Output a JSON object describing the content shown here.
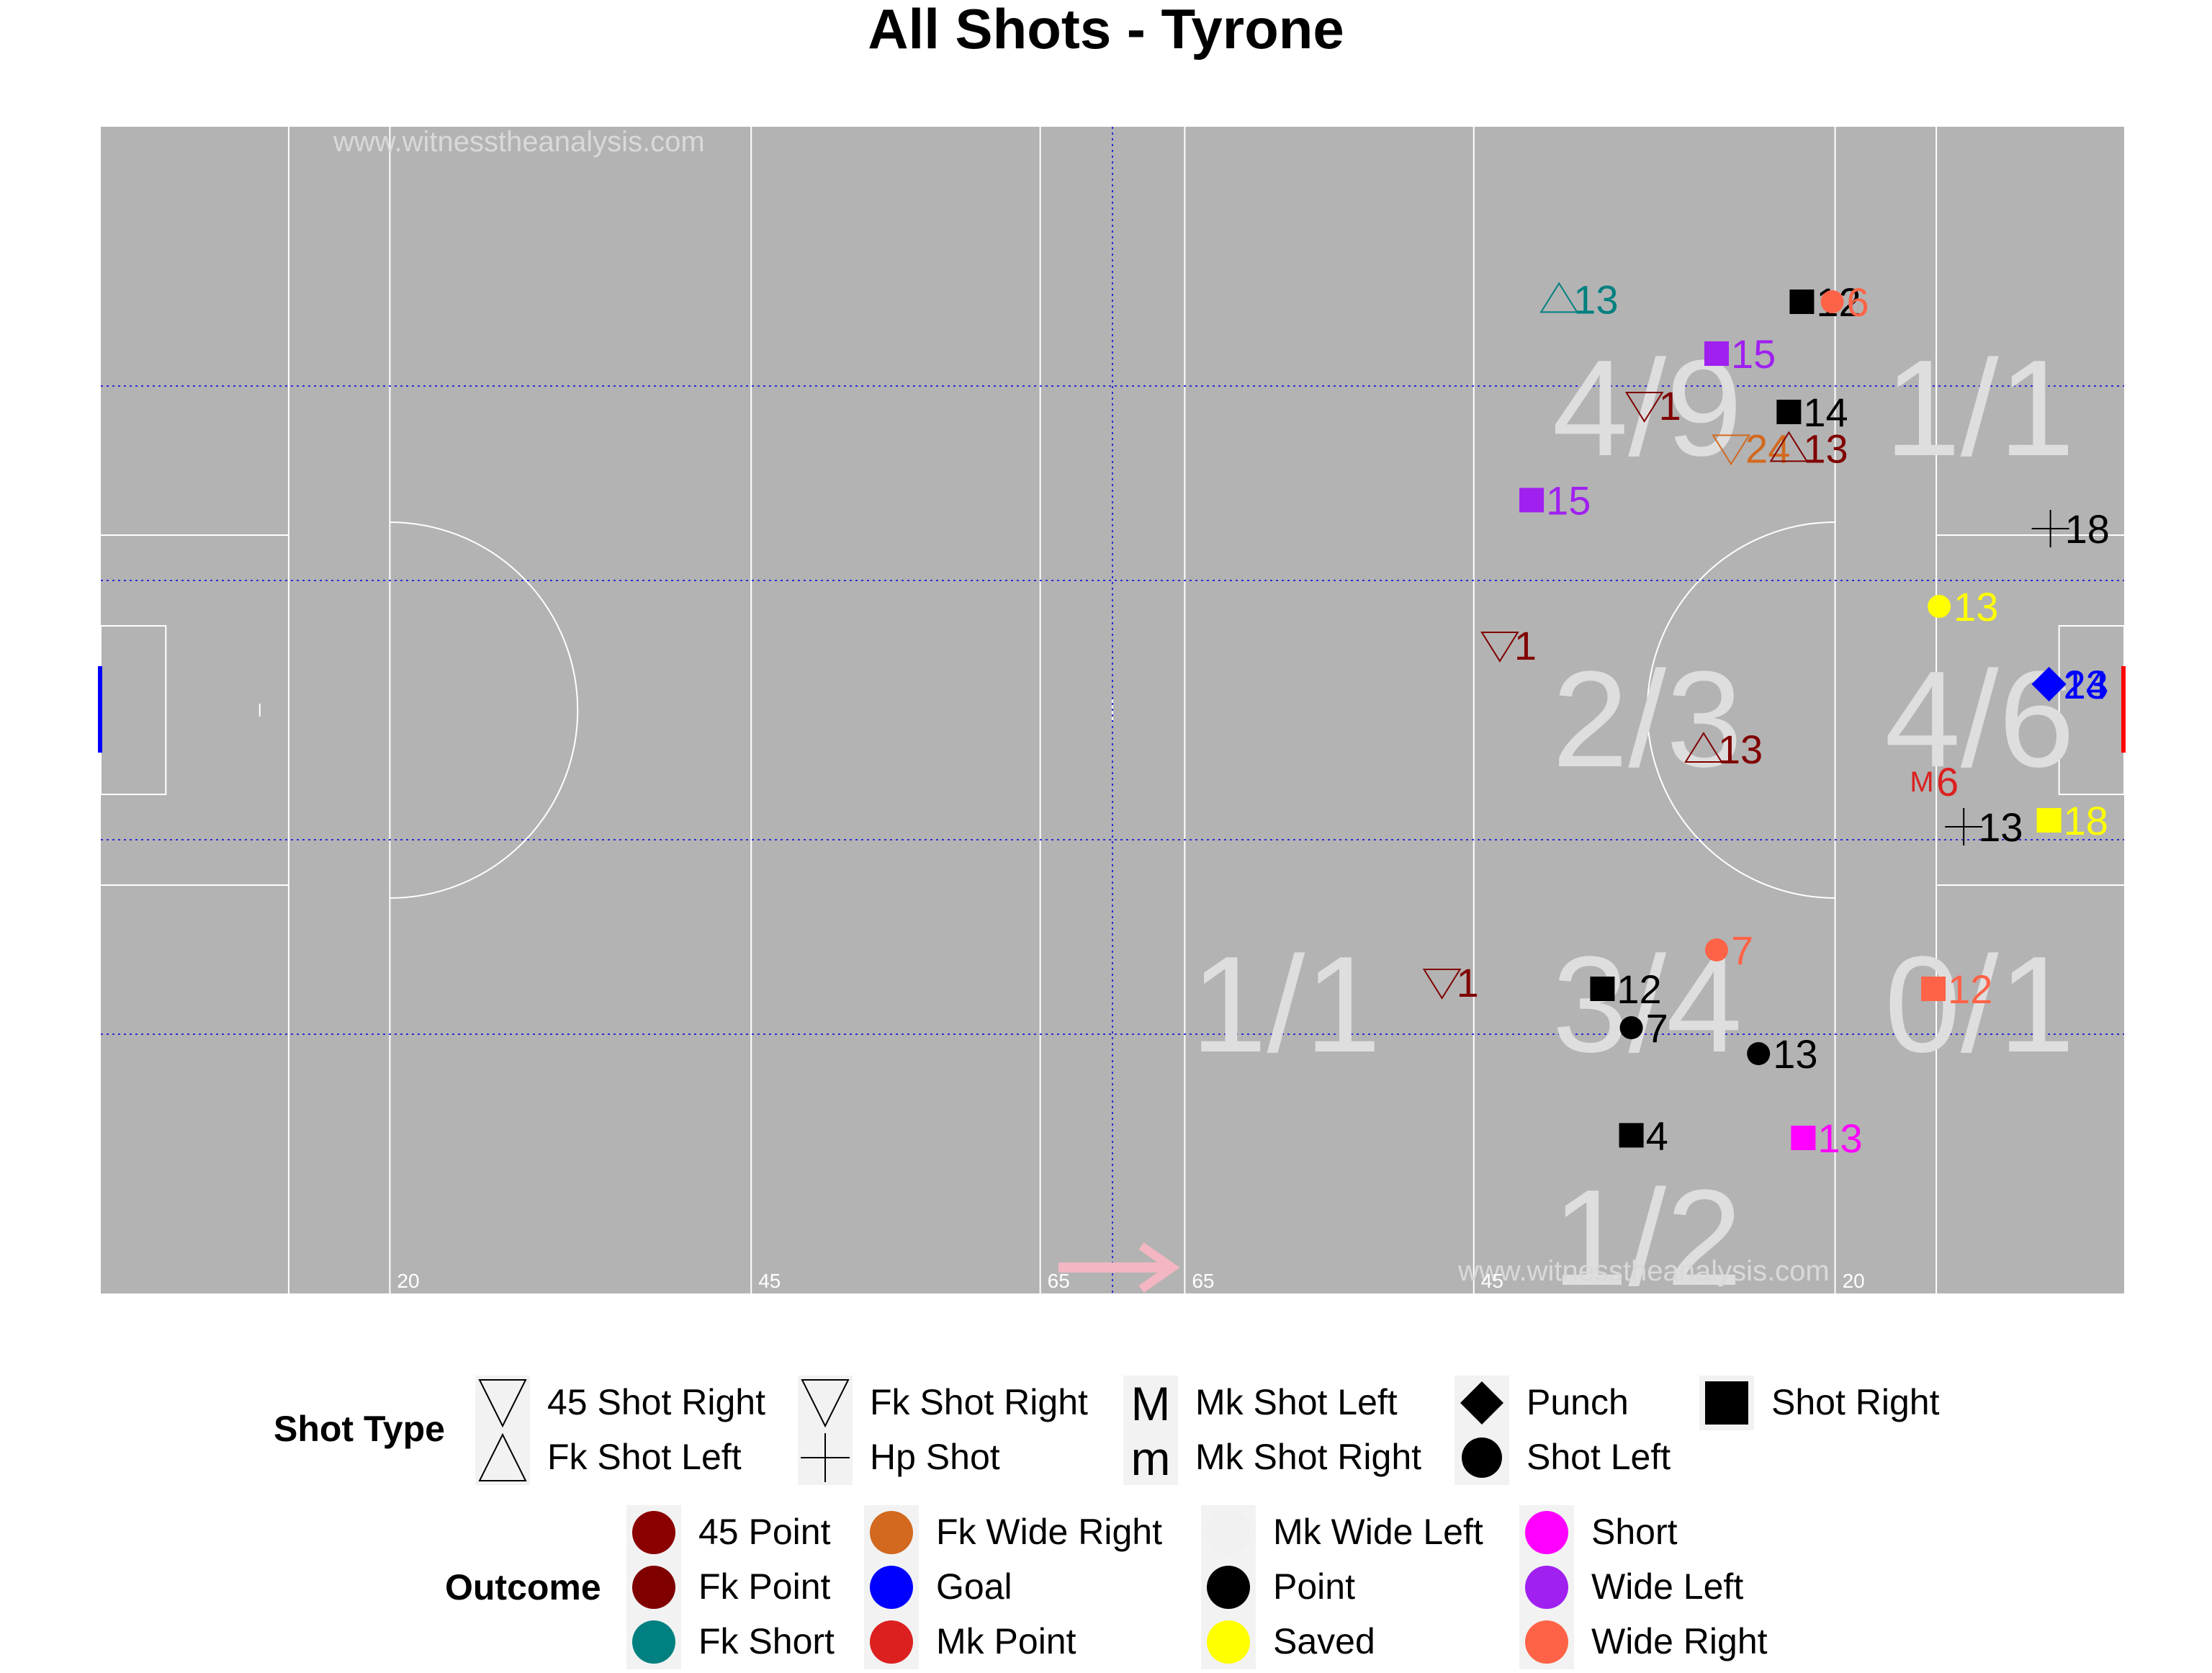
{
  "title": "All Shots - Tyrone",
  "colors": {
    "pitch": "#b3b3b3",
    "line": "#ffffff",
    "dotted": "#2b2bd6",
    "zone_text": "#dedede",
    "arrow": "#f4b6c2",
    "left_goal": "#0000ff",
    "right_goal": "#ff0000"
  },
  "pitch": {
    "watermark_top": "www.witnesstheanalysis.com",
    "watermark_bottom": "www.witnesstheanalysis.com",
    "markers": [
      {
        "label": "20",
        "x": 20
      },
      {
        "label": "45",
        "x": 45
      },
      {
        "label": "65",
        "x": 65
      },
      {
        "label": "65",
        "x": 75
      },
      {
        "label": "45",
        "x": 95
      },
      {
        "label": "20",
        "x": 120
      }
    ]
  },
  "chart_data": {
    "type": "scatter",
    "title": "All Shots - Tyrone",
    "xlim": [
      0,
      140
    ],
    "ylim": [
      0,
      90
    ],
    "zones": [
      {
        "label": "4/9",
        "x": 107,
        "y": 68
      },
      {
        "label": "1/1",
        "x": 130,
        "y": 68
      },
      {
        "label": "2/3",
        "x": 107,
        "y": 44
      },
      {
        "label": "4/6",
        "x": 130,
        "y": 44
      },
      {
        "label": "1/1",
        "x": 82,
        "y": 22
      },
      {
        "label": "3/4",
        "x": 107,
        "y": 22
      },
      {
        "label": "0/1",
        "x": 130,
        "y": 22
      },
      {
        "label": "1/2",
        "x": 107,
        "y": 4
      }
    ],
    "points": [
      {
        "x": 117.7,
        "y": 76.5,
        "label": "12",
        "shot_type": "Shot Right",
        "outcome": "Point"
      },
      {
        "x": 119.8,
        "y": 76.5,
        "label": "6",
        "shot_type": "Shot Left",
        "outcome": "Wide Right"
      },
      {
        "x": 100.9,
        "y": 76.7,
        "label": "13",
        "shot_type": "Fk Shot Left",
        "outcome": "Fk Short"
      },
      {
        "x": 111.8,
        "y": 72.5,
        "label": "15",
        "shot_type": "Shot Right",
        "outcome": "Wide Left"
      },
      {
        "x": 106.8,
        "y": 68.5,
        "label": "1",
        "shot_type": "Fk Shot Right",
        "outcome": "Fk Point"
      },
      {
        "x": 116.8,
        "y": 68.0,
        "label": "14",
        "shot_type": "Shot Right",
        "outcome": "Point"
      },
      {
        "x": 112.8,
        "y": 65.2,
        "label": "24",
        "shot_type": "Fk Shot Right",
        "outcome": "Fk Wide Right"
      },
      {
        "x": 116.8,
        "y": 65.2,
        "label": "13",
        "shot_type": "Fk Shot Left",
        "outcome": "Fk Point"
      },
      {
        "x": 99.0,
        "y": 61.2,
        "label": "15",
        "shot_type": "Shot Right",
        "outcome": "Wide Left"
      },
      {
        "x": 134.9,
        "y": 59.0,
        "label": "18",
        "shot_type": "Hp Shot",
        "outcome": "Point"
      },
      {
        "x": 127.2,
        "y": 53.0,
        "label": "13",
        "shot_type": "Shot Left",
        "outcome": "Saved"
      },
      {
        "x": 96.8,
        "y": 50.0,
        "label": "1",
        "shot_type": "Fk Shot Right",
        "outcome": "Fk Point"
      },
      {
        "x": 134.8,
        "y": 47.0,
        "label": "13",
        "shot_type": "Punch",
        "outcome": "Goal"
      },
      {
        "x": 134.8,
        "y": 47.0,
        "label": "24",
        "shot_type": "Punch",
        "outcome": "Goal"
      },
      {
        "x": 110.9,
        "y": 42.0,
        "label": "13",
        "shot_type": "Fk Shot Left",
        "outcome": "Fk Point"
      },
      {
        "x": 126.0,
        "y": 39.5,
        "label": "6",
        "shot_type": "Mk Shot Left",
        "outcome": "Mk Point"
      },
      {
        "x": 128.9,
        "y": 36.0,
        "label": "13",
        "shot_type": "Hp Shot",
        "outcome": "Point"
      },
      {
        "x": 134.8,
        "y": 36.5,
        "label": "18",
        "shot_type": "Shot Right",
        "outcome": "Saved"
      },
      {
        "x": 111.8,
        "y": 26.5,
        "label": "7",
        "shot_type": "Shot Left",
        "outcome": "Wide Right"
      },
      {
        "x": 92.8,
        "y": 24.0,
        "label": "1",
        "shot_type": "Fk Shot Right",
        "outcome": "Fk Point"
      },
      {
        "x": 103.9,
        "y": 23.5,
        "label": "12",
        "shot_type": "Shot Right",
        "outcome": "Point"
      },
      {
        "x": 126.8,
        "y": 23.5,
        "label": "12",
        "shot_type": "Shot Right",
        "outcome": "Wide Right"
      },
      {
        "x": 105.9,
        "y": 20.5,
        "label": "7",
        "shot_type": "Shot Left",
        "outcome": "Point"
      },
      {
        "x": 114.7,
        "y": 18.5,
        "label": "13",
        "shot_type": "Shot Left",
        "outcome": "Point"
      },
      {
        "x": 105.9,
        "y": 12.2,
        "label": "4",
        "shot_type": "Shot Right",
        "outcome": "Point"
      },
      {
        "x": 117.8,
        "y": 12.0,
        "label": "13",
        "shot_type": "Shot Right",
        "outcome": "Short"
      }
    ]
  },
  "legend": {
    "shot_type_title": "Shot Type",
    "shot_types": [
      {
        "label": "45 Shot Right",
        "icon": "hourglass-top-icon"
      },
      {
        "label": "Fk Shot Left",
        "icon": "triangle-up-icon"
      },
      {
        "label": "Fk Shot Right",
        "icon": "triangle-down-icon"
      },
      {
        "label": "Hp Shot",
        "icon": "plus-icon"
      },
      {
        "label": "Mk Shot Left",
        "icon": "letter-M-icon",
        "glyph": "M"
      },
      {
        "label": "Mk Shot Right",
        "icon": "letter-m-icon",
        "glyph": "m"
      },
      {
        "label": "Punch",
        "icon": "diamond-icon"
      },
      {
        "label": "Shot Left",
        "icon": "circle-icon"
      },
      {
        "label": "Shot Right",
        "icon": "square-icon"
      }
    ],
    "outcome_title": "Outcome",
    "outcomes": [
      {
        "label": "45 Point",
        "color": "#8b0000"
      },
      {
        "label": "Fk Point",
        "color": "#800000"
      },
      {
        "label": "Fk Short",
        "color": "#008080"
      },
      {
        "label": "Fk Wide Right",
        "color": "#d2691e"
      },
      {
        "label": "Goal",
        "color": "#0000ff"
      },
      {
        "label": "Mk Point",
        "color": "#dc2020"
      },
      {
        "label": "Mk Wide Left",
        "color": "#f0f0f0"
      },
      {
        "label": "Point",
        "color": "#000000"
      },
      {
        "label": "Saved",
        "color": "#ffff00"
      },
      {
        "label": "Short",
        "color": "#ff00ff"
      },
      {
        "label": "Wide Left",
        "color": "#a020f0"
      },
      {
        "label": "Wide Right",
        "color": "#ff6347"
      }
    ]
  }
}
